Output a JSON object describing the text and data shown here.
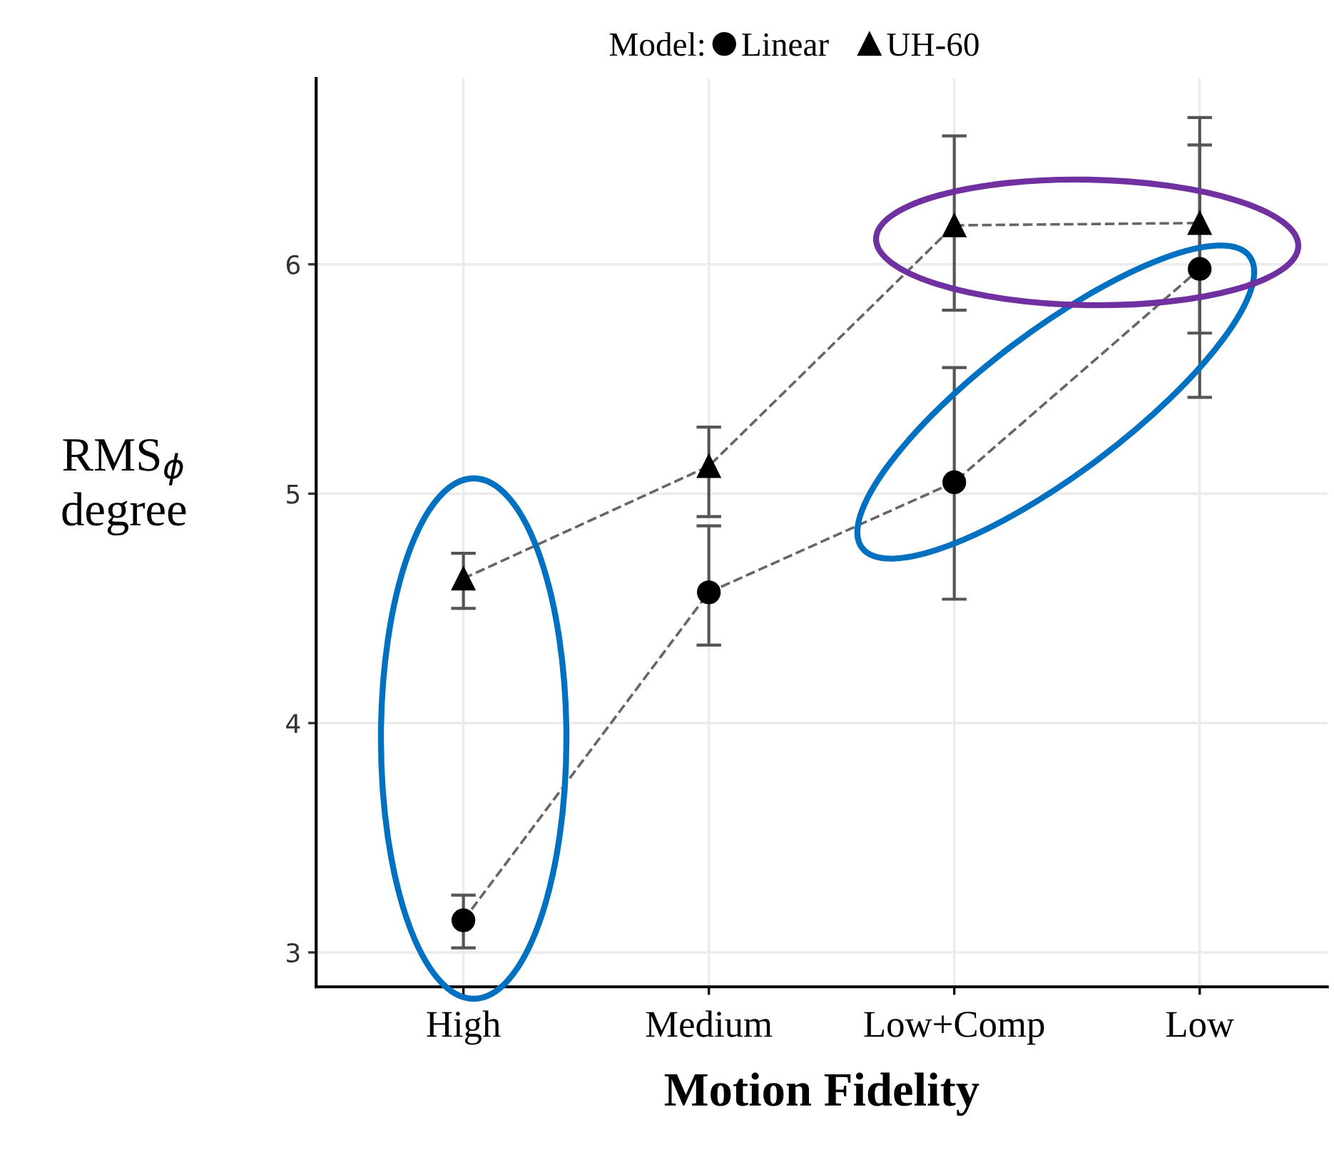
{
  "chart_data": {
    "type": "line",
    "xlabel": "Motion Fidelity",
    "ylabel": "RMS$_{ϕ}$\ndegree",
    "legend_title": "Model:",
    "categories": [
      "High",
      "Medium",
      "Low+Comp",
      "Low"
    ],
    "series": [
      {
        "name": "Linear",
        "color": "#000000",
        "marker": "circle",
        "values": [
          3.14,
          4.57,
          5.05,
          5.98
        ],
        "errors": [
          [
            3.02,
            3.25
          ],
          [
            4.34,
            4.86
          ],
          [
            4.54,
            5.55
          ],
          [
            5.42,
            6.52
          ]
        ]
      },
      {
        "name": "UH-60",
        "color": "#000000",
        "marker": "triangle",
        "values": [
          4.63,
          5.12,
          6.17,
          6.18
        ],
        "errors": [
          [
            4.5,
            4.74
          ],
          [
            4.9,
            5.29
          ],
          [
            5.8,
            6.56
          ],
          [
            5.7,
            6.64
          ]
        ]
      }
    ],
    "ylim": [
      2.85,
      6.81
    ],
    "yticks": [
      3,
      4,
      5,
      6
    ],
    "grid": true,
    "legend": "top",
    "line_style": "dashed"
  }
}
